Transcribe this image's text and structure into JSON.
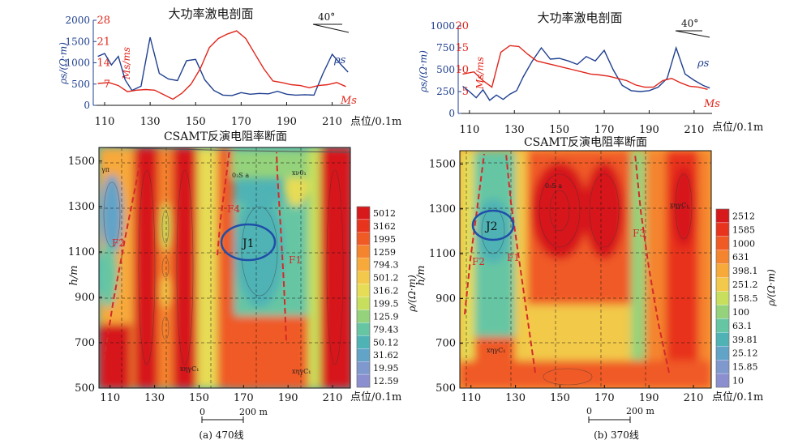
{
  "panels": [
    {
      "id": "a",
      "caption": "(a) 470线",
      "ip_title": "大功率激电剖面",
      "direction_label": "40°",
      "rho_axis": {
        "label": "ρs/(Ω·m)",
        "ticks": [
          0,
          500,
          1000,
          1500,
          2000
        ]
      },
      "ms_axis": {
        "label": "Ms/ms",
        "ticks": [
          7,
          14,
          21,
          28
        ]
      },
      "x_label": "点位/0.1m",
      "x_ticks": [
        110,
        130,
        150,
        170,
        190,
        210
      ],
      "rho_series_label": "ρs",
      "ms_series_label": "Ms",
      "section_title": "CSAMT反演电阻率断面",
      "h_axis": {
        "label": "h/m",
        "ticks": [
          500,
          700,
          900,
          1100,
          1300,
          1500
        ]
      },
      "scale_bar": {
        "start": "0",
        "end": "200 m"
      },
      "annotations": [
        "J1",
        "F1",
        "F2",
        "F4",
        "γπ",
        "xηγC₁",
        "xηγC₁",
        "0₃S a",
        "xν0₁"
      ],
      "colorbar": {
        "label": "ρ/(Ω·m)",
        "values": [
          "5012",
          "3162",
          "1995",
          "1259",
          "794.3",
          "501.2",
          "316.2",
          "199.5",
          "125.9",
          "79.43",
          "50.12",
          "31.62",
          "19.95",
          "12.59"
        ]
      }
    },
    {
      "id": "b",
      "caption": "(b) 370线",
      "ip_title": "大功率激电剖面",
      "direction_label": "40°",
      "rho_axis": {
        "label": "ρs/(Ω·m)",
        "ticks": [
          0,
          250,
          500,
          750,
          1000
        ]
      },
      "ms_axis": {
        "label": "Ms/ms",
        "ticks": [
          5,
          10,
          15,
          20
        ]
      },
      "x_label": "点位/0.1m",
      "x_ticks": [
        110,
        130,
        150,
        170,
        190,
        210
      ],
      "rho_series_label": "ρs",
      "ms_series_label": "Ms",
      "section_title": "CSAMT反演电阻率断面",
      "h_axis": {
        "label": "h/m",
        "ticks": [
          500,
          700,
          900,
          1100,
          1300,
          1500
        ]
      },
      "scale_bar": {
        "start": "0",
        "end": "200 m"
      },
      "annotations": [
        "J2",
        "F1",
        "F2",
        "F3",
        "0₃S a",
        "xηγC₁",
        "xηγC₁"
      ],
      "colorbar": {
        "label": "ρ/(Ω·m)",
        "values": [
          "2512",
          "1585",
          "1000",
          "631",
          "398.1",
          "251.2",
          "158.5",
          "100",
          "63.1",
          "39.81",
          "25.12",
          "15.85",
          "10"
        ]
      }
    }
  ],
  "colors": {
    "rho_line": "#1f3f8f",
    "ms_line": "#e0261b",
    "rho_axis": "#1f3f8f",
    "ms_axis": "#e0261b",
    "fault": "#d42a2a",
    "ellipse": "#1f4fa8",
    "colorbar_scale": [
      "#d7191c",
      "#e8331d",
      "#f05a25",
      "#f5842e",
      "#f7a93a",
      "#f2c94a",
      "#e7dc55",
      "#c7df5c",
      "#94d27b",
      "#66c6a3",
      "#4fb3b5",
      "#62a3c8",
      "#7f98cd",
      "#8c8fcf"
    ]
  },
  "chart_data": [
    {
      "type": "line",
      "panel": "a",
      "title": "大功率激电剖面",
      "xlabel": "点位/0.1m",
      "xlim": [
        105,
        218
      ],
      "series": [
        {
          "name": "ρs",
          "axis": "left",
          "ylim": [
            0,
            2000
          ],
          "x": [
            107,
            110,
            113,
            116,
            119,
            122,
            126,
            130,
            134,
            138,
            142,
            146,
            150,
            154,
            158,
            162,
            166,
            170,
            174,
            178,
            182,
            186,
            190,
            194,
            198,
            202,
            206,
            210,
            214,
            217
          ],
          "y": [
            1150,
            1220,
            950,
            1150,
            600,
            350,
            450,
            1600,
            750,
            620,
            580,
            1050,
            1080,
            600,
            350,
            240,
            230,
            300,
            260,
            280,
            270,
            330,
            260,
            240,
            250,
            240,
            750,
            1200,
            950,
            780
          ]
        },
        {
          "name": "Ms",
          "axis": "right",
          "ylim": [
            0,
            28
          ],
          "x": [
            107,
            112,
            116,
            120,
            124,
            128,
            132,
            136,
            140,
            144,
            148,
            152,
            156,
            160,
            164,
            168,
            172,
            176,
            180,
            184,
            188,
            192,
            196,
            200,
            204,
            208,
            212,
            216
          ],
          "y": [
            7.2,
            7.5,
            6.5,
            4.5,
            5.0,
            5.2,
            5.0,
            3.5,
            2.0,
            4.0,
            7.0,
            12.0,
            19.0,
            22.0,
            23.5,
            24.5,
            22.0,
            17.0,
            12.0,
            8.0,
            7.5,
            6.8,
            6.5,
            5.8,
            6.5,
            6.8,
            7.5,
            6.2
          ]
        }
      ]
    },
    {
      "type": "line",
      "panel": "b",
      "title": "大功率激电剖面",
      "xlabel": "点位/0.1m",
      "xlim": [
        105,
        218
      ],
      "series": [
        {
          "name": "ρs",
          "axis": "left",
          "ylim": [
            0,
            1000
          ],
          "x": [
            107,
            110,
            113,
            116,
            119,
            122,
            125,
            128,
            131,
            134,
            138,
            142,
            146,
            150,
            154,
            158,
            162,
            166,
            170,
            174,
            178,
            182,
            186,
            190,
            194,
            198,
            202,
            206,
            210,
            214,
            217
          ],
          "y": [
            310,
            250,
            180,
            270,
            150,
            210,
            160,
            220,
            260,
            420,
            600,
            750,
            620,
            630,
            600,
            560,
            650,
            600,
            720,
            500,
            320,
            260,
            250,
            260,
            300,
            400,
            750,
            450,
            380,
            320,
            290
          ]
        },
        {
          "name": "Ms",
          "axis": "right",
          "ylim": [
            0,
            20
          ],
          "x": [
            107,
            112,
            116,
            120,
            124,
            128,
            132,
            136,
            140,
            144,
            148,
            152,
            156,
            160,
            164,
            168,
            172,
            176,
            180,
            184,
            188,
            192,
            196,
            200,
            204,
            208,
            212,
            216
          ],
          "y": [
            9.0,
            9.5,
            7.5,
            6.0,
            14.0,
            15.5,
            15.3,
            13.5,
            12.0,
            11.5,
            11.0,
            10.5,
            10.0,
            9.5,
            9.0,
            8.8,
            8.5,
            8.0,
            7.5,
            6.5,
            6.0,
            6.0,
            7.5,
            8.0,
            7.0,
            6.2,
            6.0,
            5.5
          ]
        }
      ]
    },
    {
      "type": "heatmap",
      "panel": "a",
      "title": "CSAMT反演电阻率断面",
      "xlabel": "点位/0.1m",
      "ylabel": "h/m",
      "xlim": [
        105,
        218
      ],
      "ylim": [
        500,
        1560
      ],
      "colorbar_label": "ρ/(Ω·m)",
      "zones_rho": [
        {
          "x_range": [
            107,
            122
          ],
          "label": "low",
          "rho": 40
        },
        {
          "x_range": [
            122,
            137
          ],
          "label": "high",
          "rho": 3000
        },
        {
          "x_range": [
            137,
            143
          ],
          "label": "mid",
          "rho": 400
        },
        {
          "x_range": [
            143,
            155
          ],
          "label": "high",
          "rho": 3000
        },
        {
          "x_range": [
            155,
            163
          ],
          "label": "mid",
          "rho": 250
        },
        {
          "x_range": [
            163,
            190
          ],
          "label": "low",
          "rho": 90
        },
        {
          "x_range": [
            190,
            205
          ],
          "label": "mid",
          "rho": 250
        },
        {
          "x_range": [
            205,
            218
          ],
          "label": "high",
          "rho": 3000
        }
      ]
    },
    {
      "type": "heatmap",
      "panel": "b",
      "title": "CSAMT反演电阻率断面",
      "xlabel": "点位/0.1m",
      "ylabel": "h/m",
      "xlim": [
        105,
        218
      ],
      "ylim": [
        500,
        1560
      ],
      "colorbar_label": "ρ/(Ω·m)",
      "zones_rho": [
        {
          "x_range": [
            107,
            112
          ],
          "label": "mid",
          "rho": 300
        },
        {
          "x_range": [
            112,
            130
          ],
          "label": "low",
          "rho": 50
        },
        {
          "x_range": [
            130,
            140
          ],
          "label": "mid",
          "rho": 400
        },
        {
          "x_range": [
            140,
            180
          ],
          "label": "high",
          "rho": 1500
        },
        {
          "x_range": [
            180,
            190
          ],
          "label": "mid",
          "rho": 150
        },
        {
          "x_range": [
            190,
            200
          ],
          "label": "mid",
          "rho": 500
        },
        {
          "x_range": [
            200,
            215
          ],
          "label": "high",
          "rho": 2000
        }
      ]
    }
  ]
}
